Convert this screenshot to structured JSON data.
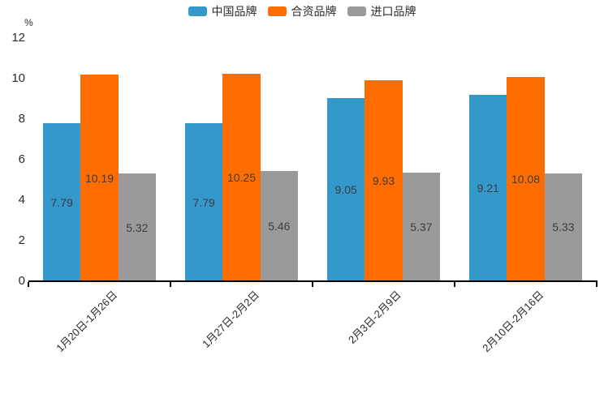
{
  "chart_data": {
    "type": "bar",
    "unit": "%",
    "categories": [
      "1月20日-1月26日",
      "1月27日-2月2日",
      "2月3日-2月9日",
      "2月10日-2月16日"
    ],
    "series": [
      {
        "name": "中国品牌",
        "color": "#3498cb",
        "values": [
          7.79,
          7.79,
          9.05,
          9.21
        ]
      },
      {
        "name": "合资品牌",
        "color": "#ff6d00",
        "values": [
          10.19,
          10.25,
          9.93,
          10.08
        ]
      },
      {
        "name": "进口品牌",
        "color": "#9a9a9a",
        "values": [
          5.32,
          5.46,
          5.37,
          5.33
        ]
      }
    ],
    "ylim": [
      0,
      12
    ],
    "y_ticks": [
      0,
      2,
      4,
      6,
      8,
      10,
      12
    ],
    "legend_position": "top",
    "grid": false,
    "value_labels": "inside-center",
    "value_label_color": "#3d3d3d",
    "axis_color": "#000000"
  }
}
